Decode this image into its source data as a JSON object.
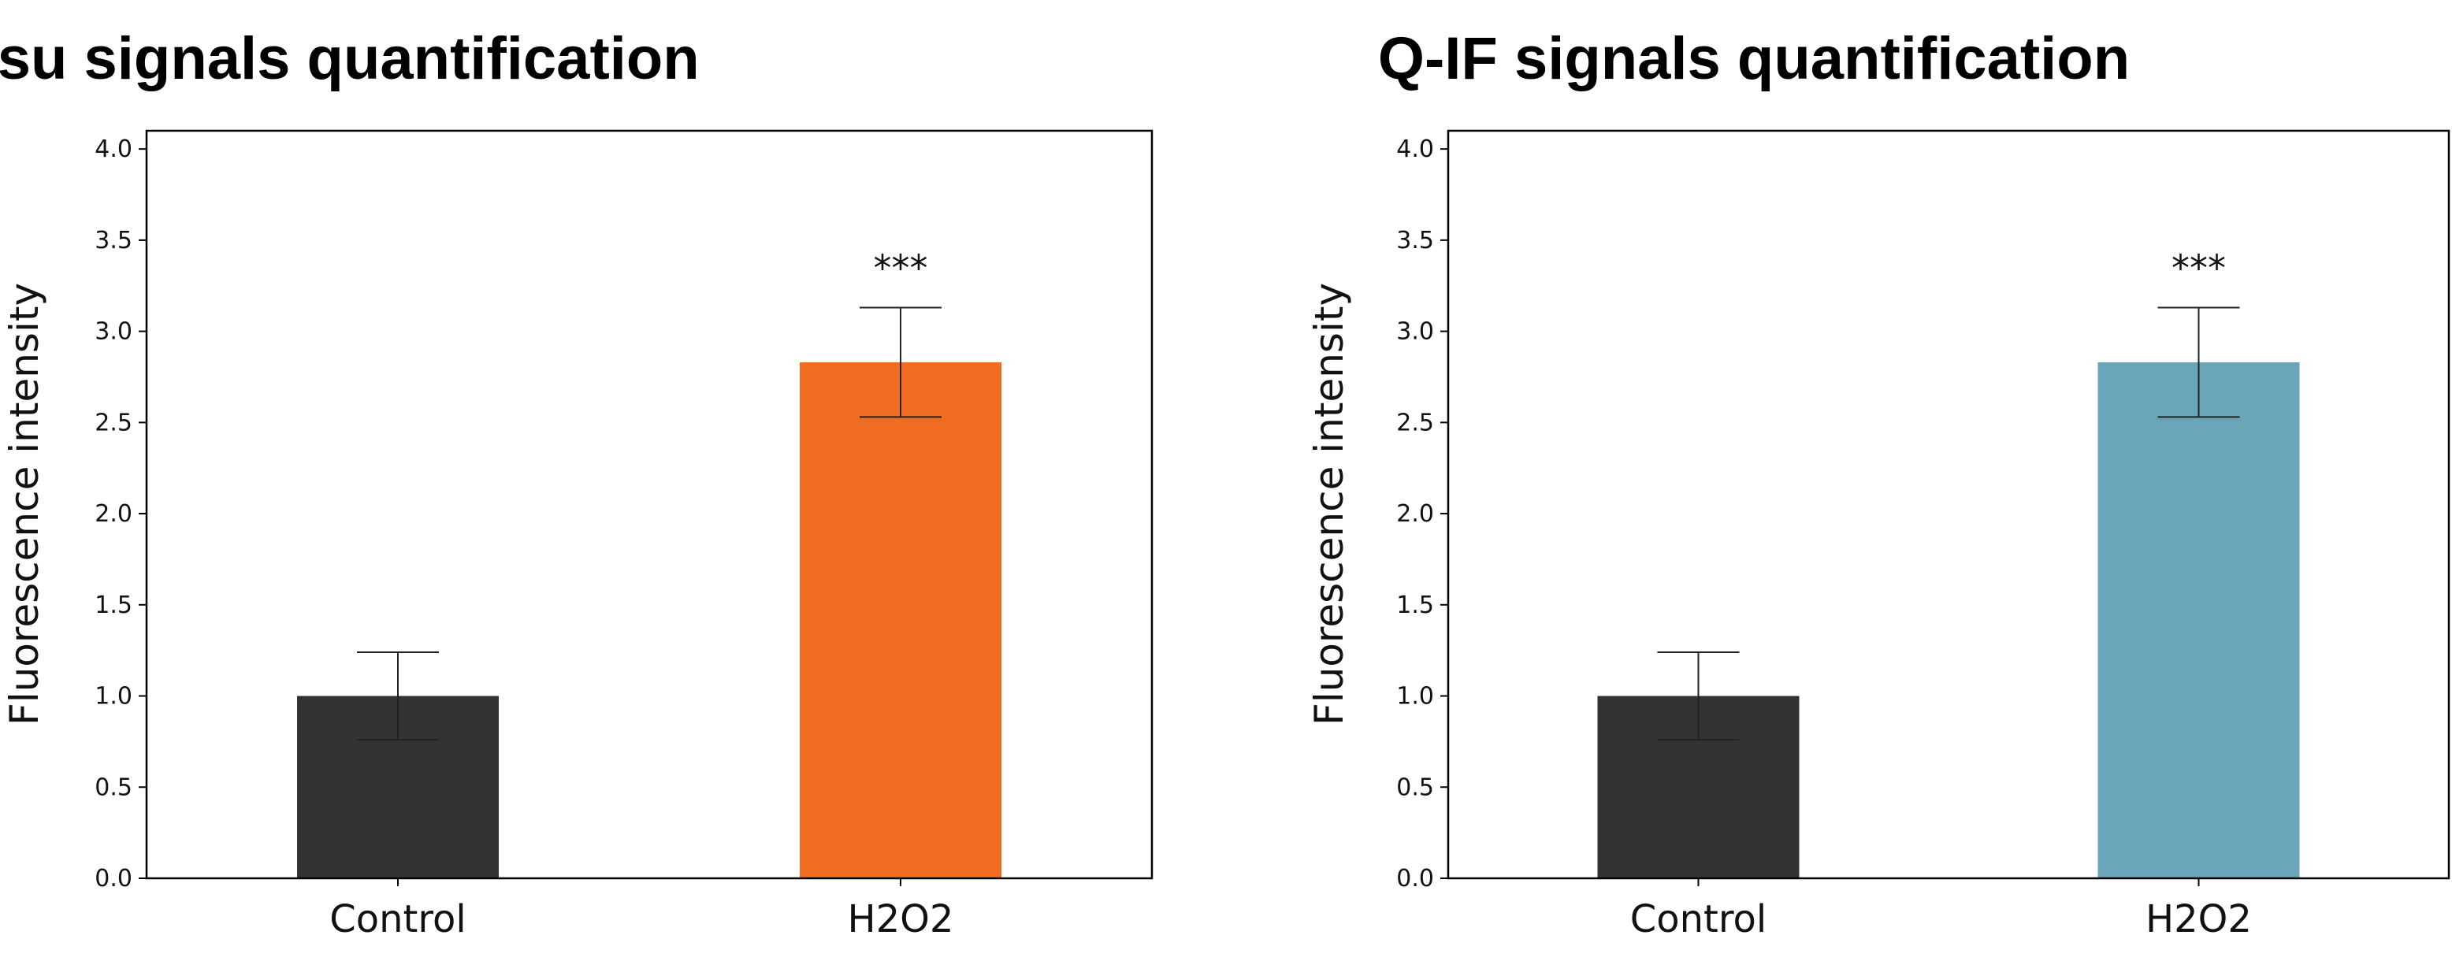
{
  "chart_data": [
    {
      "type": "bar",
      "title": "Otsu signals quantification",
      "xlabel": "",
      "ylabel": "Fluorescence intensity",
      "ylim": [
        0,
        4.1
      ],
      "yticks": [
        "0.0",
        "0.5",
        "1.0",
        "1.5",
        "2.0",
        "2.5",
        "3.0",
        "3.5",
        "4.0"
      ],
      "categories": [
        "Control",
        "H2O2"
      ],
      "values": [
        1.0,
        2.83
      ],
      "errors": [
        0.24,
        0.3
      ],
      "colors": [
        "#333333",
        "#ef6c21"
      ],
      "annotations": [
        "",
        "***"
      ],
      "grid": false
    },
    {
      "type": "bar",
      "title": "Q-IF signals quantification",
      "xlabel": "",
      "ylabel": "Fluorescence intensity",
      "ylim": [
        0,
        4.1
      ],
      "yticks": [
        "0.0",
        "0.5",
        "1.0",
        "1.5",
        "2.0",
        "2.5",
        "3.0",
        "3.5",
        "4.0"
      ],
      "categories": [
        "Control",
        "H2O2"
      ],
      "values": [
        1.0,
        2.83
      ],
      "errors": [
        0.24,
        0.3
      ],
      "colors": [
        "#333333",
        "#6aa4b8"
      ],
      "annotations": [
        "",
        "***"
      ],
      "grid": false
    }
  ]
}
